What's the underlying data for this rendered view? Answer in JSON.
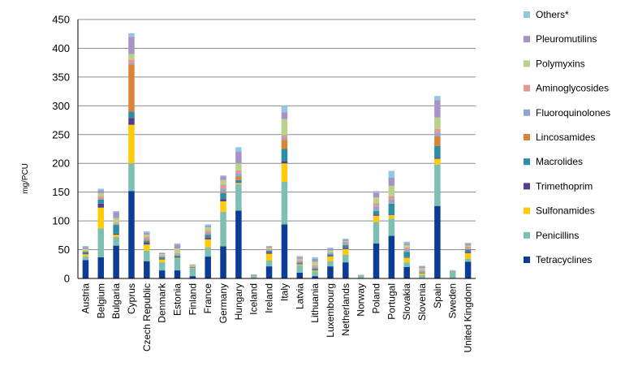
{
  "chart_data": {
    "type": "bar",
    "stacked": true,
    "ylabel": "mg/PCU",
    "xlabel": "",
    "title": "",
    "ylim": [
      0,
      450
    ],
    "yticks": [
      0,
      50,
      100,
      150,
      200,
      250,
      300,
      350,
      400,
      450
    ],
    "grid": "horizontal",
    "legend_position": "right",
    "categories": [
      "Austria",
      "Belgium",
      "Bulgaria",
      "Cyprus",
      "Czech Republic",
      "Denmark",
      "Estonia",
      "Finland",
      "France",
      "Germany",
      "Hungary",
      "Iceland",
      "Ireland",
      "Italy",
      "Latvia",
      "Lithuania",
      "Luxembourg",
      "Netherlands",
      "Norway",
      "Poland",
      "Portugal",
      "Slovakia",
      "Slovenia",
      "Spain",
      "Sweden",
      "United Kingdom"
    ],
    "series": [
      {
        "name": "Tetracyclines",
        "color": "#0b3c96",
        "values": [
          32,
          37,
          57,
          152,
          30,
          14,
          14,
          4,
          38,
          56,
          118,
          1,
          21,
          94,
          10,
          4,
          21,
          28,
          0.5,
          61,
          74,
          20,
          1,
          126,
          0.5,
          29
        ]
      },
      {
        "name": "Penicillins",
        "color": "#7dbfb2",
        "values": [
          6,
          50,
          15,
          48,
          18,
          14,
          21,
          14,
          16,
          60,
          46,
          3,
          10,
          74,
          13,
          8,
          9,
          13,
          4,
          37,
          30,
          8,
          5,
          72,
          11,
          5
        ]
      },
      {
        "name": "Sulfonamides",
        "color": "#ffca0a",
        "values": [
          4,
          36,
          4,
          67,
          11,
          5,
          1,
          1,
          14,
          18,
          2,
          0.5,
          12,
          32,
          2,
          2,
          8,
          10,
          0.5,
          11,
          6,
          8,
          3,
          10,
          0.5,
          10
        ]
      },
      {
        "name": "Trimethoprim",
        "color": "#5a3a8a",
        "values": [
          1,
          7,
          2,
          12,
          3,
          1,
          0.5,
          0.5,
          3,
          4,
          1,
          0,
          2,
          4,
          0.5,
          0.5,
          1,
          2,
          0,
          2,
          1,
          1,
          0.5,
          2,
          0,
          2
        ]
      },
      {
        "name": "Macrolides",
        "color": "#2a8ea4",
        "values": [
          3,
          7,
          15,
          11,
          3,
          3,
          3,
          0.5,
          5,
          10,
          4,
          0.5,
          3,
          21,
          2,
          3,
          3,
          5,
          0.5,
          6,
          19,
          9,
          1,
          20,
          0.5,
          4
        ]
      },
      {
        "name": "Lincosamides",
        "color": "#d9843a",
        "values": [
          0.5,
          1,
          1,
          82,
          2,
          1,
          0.5,
          0,
          1,
          2,
          6,
          0,
          0.5,
          16,
          0.5,
          0.5,
          0.5,
          1,
          0,
          1,
          1,
          1,
          0.5,
          17,
          0,
          1
        ]
      },
      {
        "name": "Fluoroquinolones",
        "color": "#8fa6d4",
        "values": [
          1,
          2,
          1,
          2,
          2,
          1,
          2,
          0.5,
          2,
          6,
          6,
          0,
          1,
          3,
          2,
          2,
          2,
          3,
          0,
          7,
          6,
          4,
          2,
          6,
          0,
          1
        ]
      },
      {
        "name": "Aminoglycosides",
        "color": "#e49790",
        "values": [
          1,
          3,
          2,
          6,
          3,
          1,
          2,
          0.5,
          4,
          7,
          5,
          0.5,
          2,
          5,
          2,
          3,
          1,
          2,
          0.5,
          6,
          6,
          3,
          2,
          7,
          0.5,
          3
        ]
      },
      {
        "name": "Polymyxins",
        "color": "#b8d28a",
        "values": [
          3,
          5,
          8,
          10,
          4,
          2,
          8,
          2,
          6,
          8,
          12,
          0.5,
          2,
          28,
          2,
          6,
          3,
          1,
          0,
          10,
          18,
          4,
          3,
          20,
          0.5,
          2
        ]
      },
      {
        "name": "Pleuromutilins",
        "color": "#a894c4",
        "values": [
          3,
          5,
          10,
          30,
          4,
          2,
          7,
          1,
          3,
          6,
          20,
          0.5,
          2,
          12,
          3,
          5,
          3,
          2,
          0,
          8,
          14,
          3,
          3,
          30,
          0.5,
          3
        ]
      },
      {
        "name": "Others*",
        "color": "#8fc8e0",
        "values": [
          2,
          3,
          2,
          6,
          2,
          1,
          2,
          0.5,
          2,
          2,
          8,
          0.5,
          1,
          11,
          2,
          3,
          2,
          2,
          0.5,
          3,
          12,
          3,
          1,
          7,
          0.5,
          2
        ]
      }
    ]
  }
}
